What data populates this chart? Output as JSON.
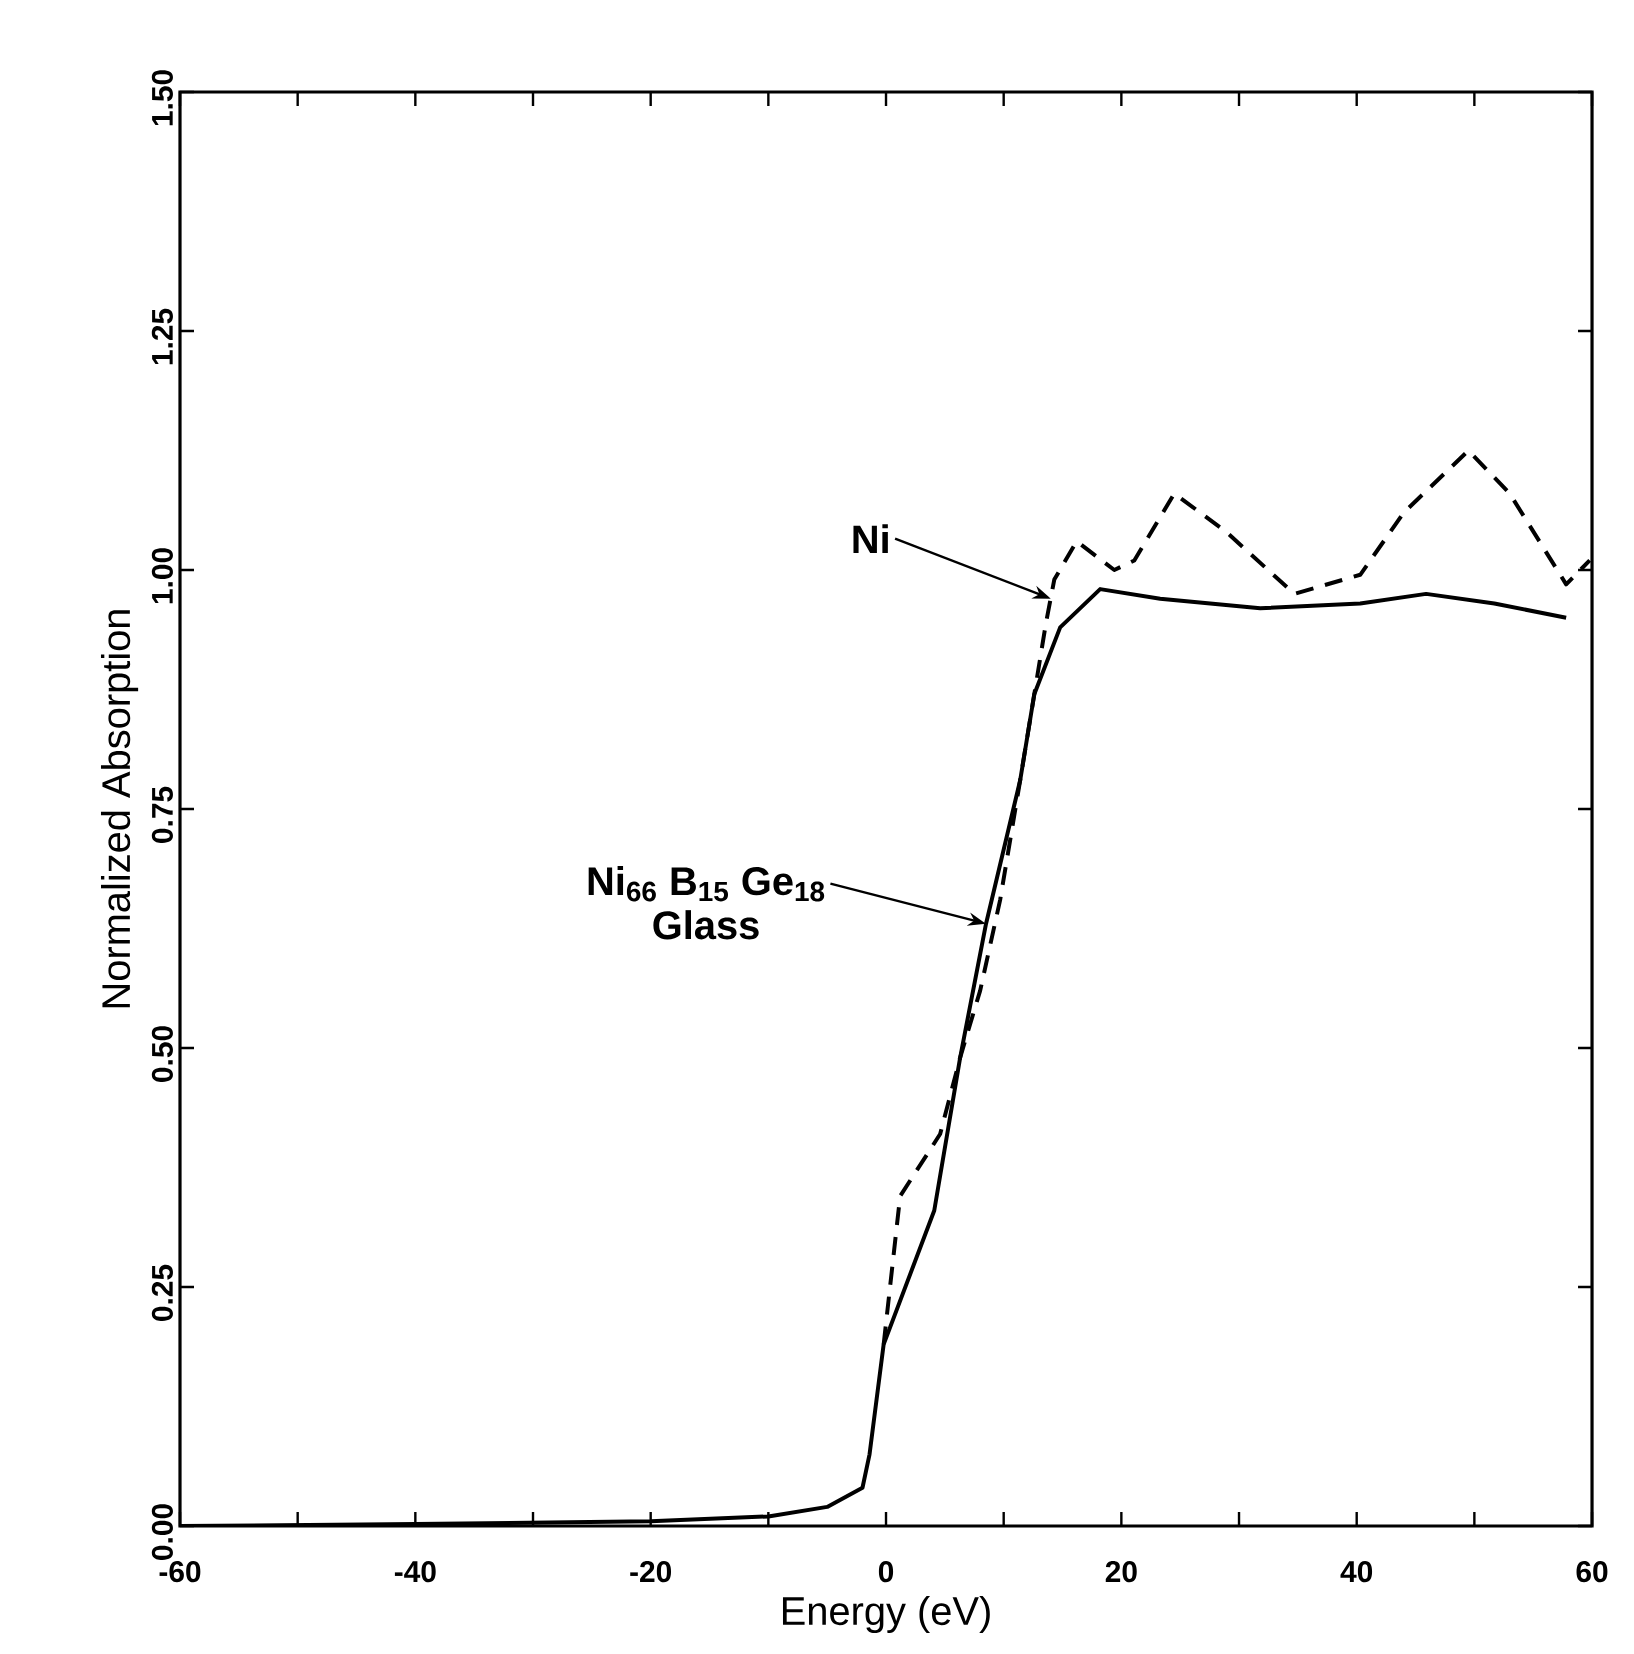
{
  "chart_data": {
    "type": "line",
    "xlabel": "Energy (eV)",
    "ylabel": "Normalized Absorption",
    "xlim": [
      -60,
      60
    ],
    "ylim": [
      0,
      1.5
    ],
    "xticks": [
      -60,
      {
        "value": -50,
        "label": null
      },
      -40,
      {
        "value": -30,
        "label": null
      },
      -20,
      {
        "value": -10,
        "label": null
      },
      0,
      {
        "value": 10,
        "label": null
      },
      20,
      {
        "value": 30,
        "label": null
      },
      40,
      {
        "value": 50,
        "label": null
      },
      60
    ],
    "yticks": [
      {
        "value": 0,
        "label": "0.00"
      },
      {
        "value": 0.25,
        "label": "0.25"
      },
      {
        "value": 0.5,
        "label": "0.50"
      },
      {
        "value": 0.75,
        "label": "0.75"
      },
      {
        "value": 1,
        "label": "1.00"
      },
      {
        "value": 1.25,
        "label": "1.25"
      },
      {
        "value": 1.5,
        "label": "1.50"
      }
    ],
    "grid": false,
    "marker": "none",
    "series": [
      {
        "color": "#000000",
        "line_style": "solid",
        "x": [
          -60,
          -40,
          -20,
          -10,
          -5,
          -2,
          -1.4,
          -0.2,
          4.1,
          6.3,
          8.5,
          11.4,
          12.6,
          14.8,
          18.2,
          23.3,
          31.8,
          40.3,
          45.9,
          51.7,
          57.8
        ],
        "values": [
          0,
          0.002,
          0.005,
          0.01,
          0.02,
          0.04,
          0.075,
          0.19,
          0.33,
          0.49,
          0.63,
          0.78,
          0.87,
          0.94,
          0.98,
          0.97,
          0.96,
          0.965,
          0.975,
          0.965,
          0.95
        ]
      },
      {
        "color": "#000000",
        "line_style": "dashed",
        "x": [
          -0.2,
          1.2,
          4.6,
          6.3,
          8,
          9.7,
          11.4,
          13.6,
          14.3,
          16.2,
          19.4,
          21.1,
          24.5,
          28.9,
          34.7,
          40.3,
          44,
          49.5,
          53,
          57.8,
          59.8
        ],
        "values": [
          0.19,
          0.345,
          0.41,
          0.49,
          0.56,
          0.655,
          0.78,
          0.945,
          0.99,
          1.03,
          1.0,
          1.01,
          1.08,
          1.04,
          0.975,
          0.995,
          1.06,
          1.125,
          1.08,
          0.985,
          1.01
        ]
      }
    ],
    "annotations": [
      {
        "text": "Ni",
        "x": 14,
        "y": 0.97
      },
      {
        "text": "Ni$_{66}$ B$_{15}$ Ge$_{18}$",
        "x": 8.5,
        "y": 0.63
      },
      "Glass"
    ]
  }
}
